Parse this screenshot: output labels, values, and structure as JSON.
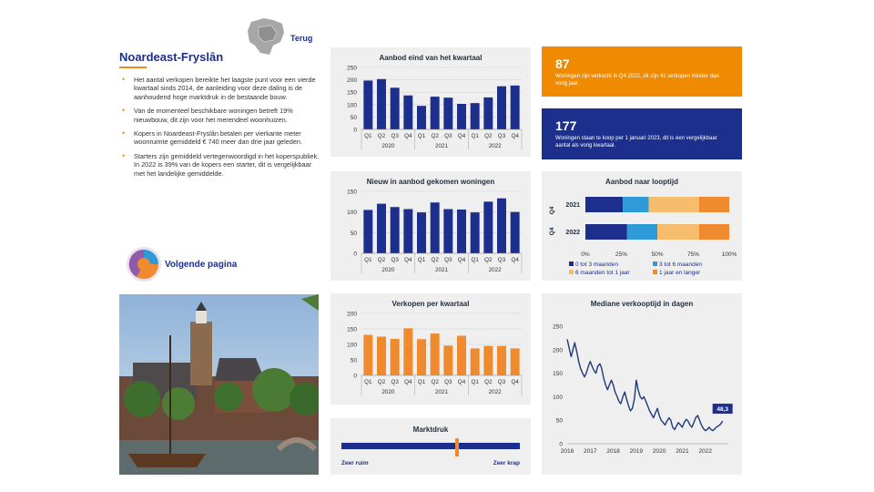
{
  "header": {
    "region": "Noardeast-Fryslân",
    "back_label": "Terug"
  },
  "bullets": [
    "Het aantal verkopen bereikte het laagste punt voor een vierde kwartaal sinds 2014, de aanleiding voor deze daling is de aanhoudend hoge marktdruk in de bestaande bouw.",
    "Van de momenteel beschikbare woningen betreft 19% nieuwbouw, dit zijn voor het merendeel woonhuizen.",
    "Kopers in Noardeast-Fryslân betalen per vierkante meter woonruimte gemiddeld € 740 meer dan drie jaar geleden.",
    "Starters zijn gemiddeld vertegenwoordigd in het kopersp​ubliek. In 2022 is 39% van de kopers een starter, dit is vergelijkbaar met het landelijke gemiddelde."
  ],
  "next_page": {
    "label": "Volgende pagina"
  },
  "kpis": [
    {
      "value": "87",
      "text": "Woningen zijn verkocht in Q4 2022, dit zijn 41 verkopen minder dan vorig jaar.",
      "color": "#f08a00"
    },
    {
      "value": "177",
      "text": "Woningen staan te koop per 1 januari 2023, dit is een vergelijkbaar aantal als vorig kwartaal.",
      "color": "#1c2f8c"
    }
  ],
  "colors": {
    "navy": "#1c2f8c",
    "orange": "#f08a2e",
    "blue_light": "#2e9ad8",
    "peach": "#f7bd6e",
    "line": "#1f3a78",
    "grey_panel": "#efefef"
  },
  "chart_data": [
    {
      "type": "bar",
      "title": "Aanbod eind van het kwartaal",
      "categories": [
        "Q1",
        "Q2",
        "Q3",
        "Q4",
        "Q1",
        "Q2",
        "Q3",
        "Q4",
        "Q1",
        "Q2",
        "Q3",
        "Q4"
      ],
      "years": [
        "2020",
        "2021",
        "2022"
      ],
      "values": [
        197,
        203,
        168,
        137,
        95,
        132,
        128,
        103,
        106,
        129,
        174,
        177
      ],
      "ylim": [
        0,
        250
      ],
      "yticks": [
        "0",
        "50",
        "100",
        "150",
        "200",
        "250"
      ],
      "grid": true
    },
    {
      "type": "bar",
      "title": "Nieuw in aanbod gekomen woningen",
      "categories": [
        "Q1",
        "Q2",
        "Q3",
        "Q4",
        "Q1",
        "Q2",
        "Q3",
        "Q4",
        "Q1",
        "Q2",
        "Q3",
        "Q4"
      ],
      "years": [
        "2020",
        "2021",
        "2022"
      ],
      "values": [
        105,
        120,
        112,
        107,
        99,
        123,
        107,
        106,
        99,
        125,
        133,
        100
      ],
      "ylim": [
        0,
        150
      ],
      "yticks": [
        "0",
        "50",
        "100",
        "150"
      ],
      "grid": true
    },
    {
      "type": "bar",
      "title": "Verkopen per kwartaal",
      "categories": [
        "Q1",
        "Q2",
        "Q3",
        "Q4",
        "Q1",
        "Q2",
        "Q3",
        "Q4",
        "Q1",
        "Q2",
        "Q3",
        "Q4"
      ],
      "years": [
        "2020",
        "2021",
        "2022"
      ],
      "values": [
        131,
        125,
        118,
        152,
        117,
        135,
        96,
        128,
        87,
        95,
        95,
        87
      ],
      "ylim": [
        0,
        200
      ],
      "yticks": [
        "0",
        "50",
        "100",
        "150",
        "200"
      ],
      "grid": true
    },
    {
      "type": "bar",
      "title": "Aanbod naar looptijd",
      "stacked": "horizontal-100",
      "categories": [
        "2021",
        "2022"
      ],
      "group_label": "Q4",
      "series": [
        {
          "name": "0 tot 3 maanden",
          "values": [
            26,
            29
          ],
          "color": "#1c2f8c"
        },
        {
          "name": "3 tot 6 maanden",
          "values": [
            18,
            21
          ],
          "color": "#2e9ad8"
        },
        {
          "name": "6 maanden tot 1 jaar",
          "values": [
            35,
            29
          ],
          "color": "#f7bd6e"
        },
        {
          "name": "1 jaar en langer",
          "values": [
            21,
            21
          ],
          "color": "#f08a2e"
        }
      ],
      "xticks": [
        "0%",
        "25%",
        "50%",
        "75%",
        "100%"
      ],
      "legend": "bottom"
    },
    {
      "type": "line",
      "title": "Mediane verkooptijd in dagen",
      "x": [
        2016.0,
        2016.08,
        2016.17,
        2016.25,
        2016.33,
        2016.42,
        2016.5,
        2016.58,
        2016.67,
        2016.75,
        2016.83,
        2016.92,
        2017.0,
        2017.08,
        2017.17,
        2017.25,
        2017.33,
        2017.42,
        2017.5,
        2017.58,
        2017.67,
        2017.75,
        2017.83,
        2017.92,
        2018.0,
        2018.08,
        2018.17,
        2018.25,
        2018.33,
        2018.42,
        2018.5,
        2018.58,
        2018.67,
        2018.75,
        2018.83,
        2018.92,
        2019.0,
        2019.08,
        2019.17,
        2019.25,
        2019.33,
        2019.42,
        2019.5,
        2019.58,
        2019.67,
        2019.75,
        2019.83,
        2019.92,
        2020.0,
        2020.08,
        2020.17,
        2020.25,
        2020.33,
        2020.42,
        2020.5,
        2020.58,
        2020.67,
        2020.75,
        2020.83,
        2020.92,
        2021.0,
        2021.08,
        2021.17,
        2021.25,
        2021.33,
        2021.42,
        2021.5,
        2021.58,
        2021.67,
        2021.75,
        2021.83,
        2021.92,
        2022.0,
        2022.08,
        2022.17,
        2022.25,
        2022.33,
        2022.42,
        2022.5,
        2022.58,
        2022.67,
        2022.75
      ],
      "y": [
        222,
        205,
        185,
        200,
        215,
        195,
        175,
        160,
        150,
        142,
        150,
        165,
        175,
        165,
        155,
        150,
        165,
        170,
        160,
        140,
        125,
        115,
        125,
        135,
        125,
        110,
        100,
        90,
        85,
        100,
        110,
        95,
        80,
        70,
        75,
        95,
        135,
        115,
        100,
        95,
        100,
        90,
        80,
        70,
        62,
        55,
        65,
        75,
        60,
        50,
        45,
        40,
        48,
        55,
        50,
        35,
        30,
        38,
        45,
        40,
        35,
        45,
        52,
        48,
        40,
        35,
        45,
        55,
        60,
        50,
        40,
        32,
        28,
        30,
        35,
        30,
        28,
        32,
        36,
        38,
        42,
        48.3
      ],
      "xlim": [
        2016,
        2023
      ],
      "xticks": [
        "2016",
        "2017",
        "2018",
        "2019",
        "2020",
        "2021",
        "2022"
      ],
      "ylim": [
        0,
        250
      ],
      "yticks": [
        "0",
        "50",
        "100",
        "150",
        "200",
        "250"
      ],
      "last_value_label": "48,3",
      "grid": false
    }
  ],
  "marktdruk": {
    "title": "Marktdruk",
    "left_label": "Zeer ruim",
    "right_label": "Zeer krap",
    "level": 0.65
  }
}
